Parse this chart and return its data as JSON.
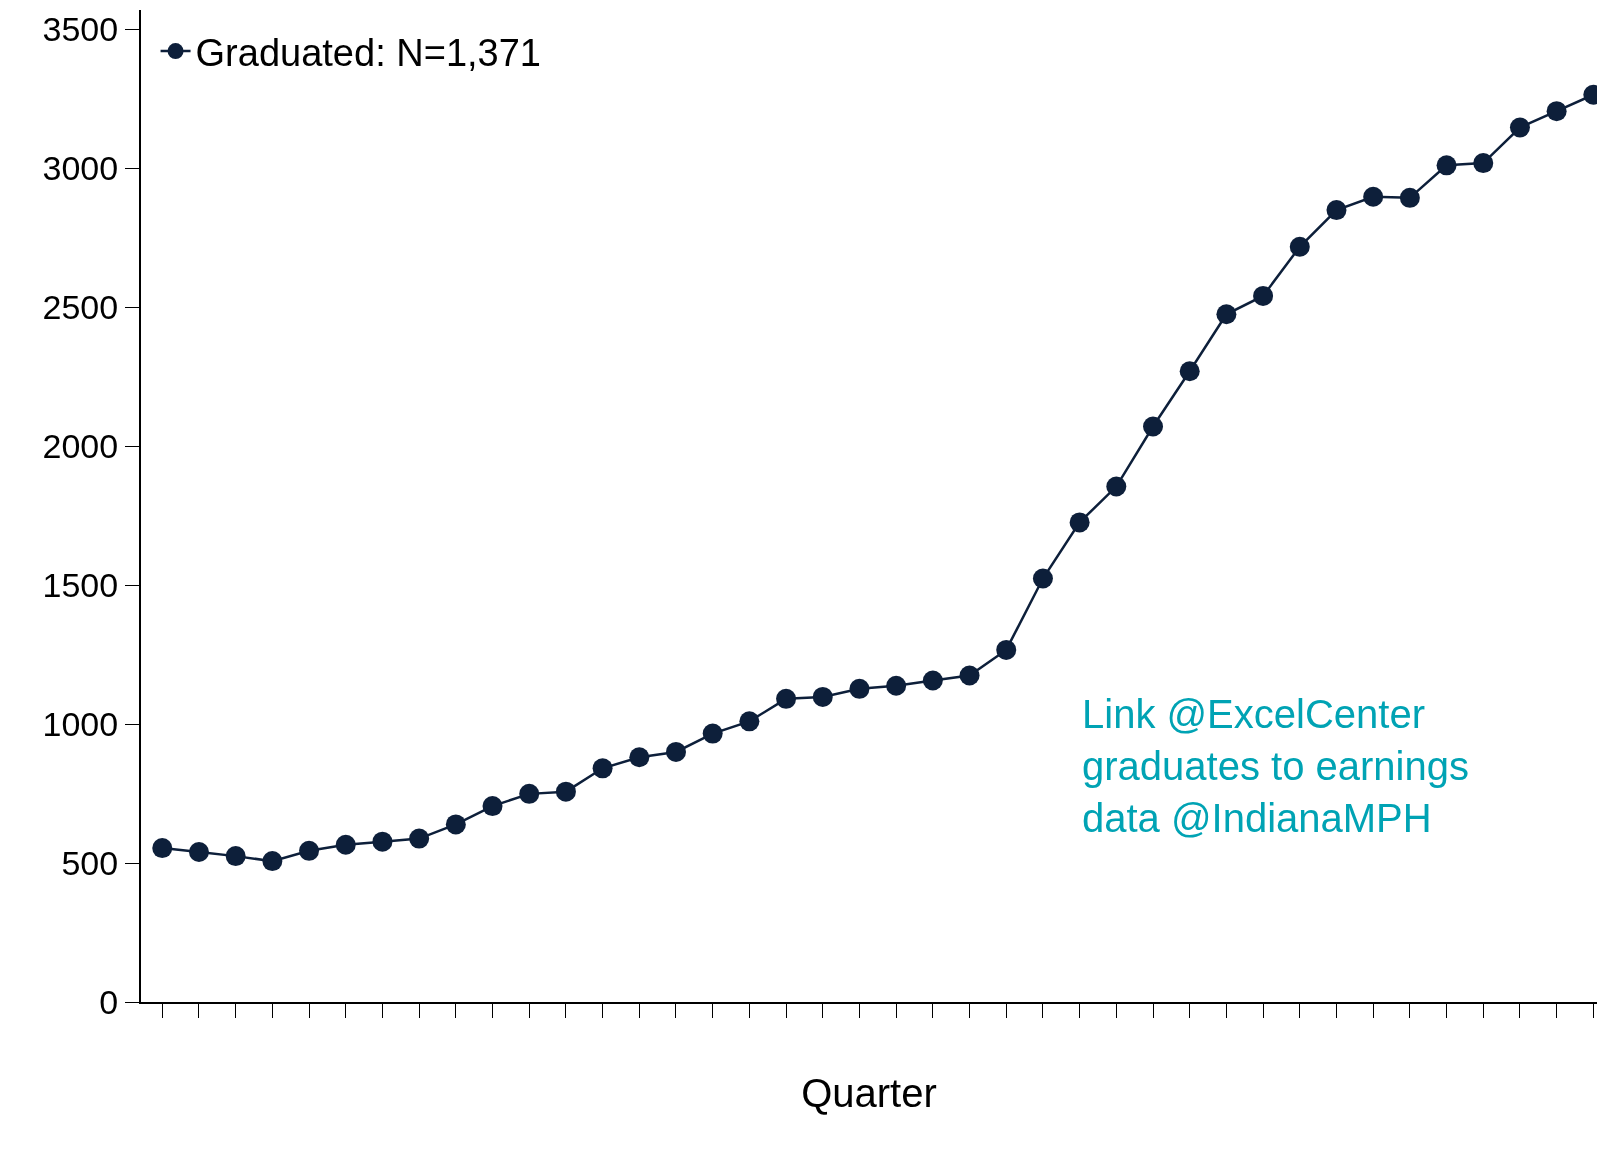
{
  "chart_data": {
    "type": "line",
    "xlabel": "Quarter",
    "categories": [
      null,
      null,
      null,
      null,
      null,
      null,
      null,
      null,
      null,
      null,
      null,
      null,
      null,
      null,
      null,
      null,
      null,
      null,
      null,
      null,
      null,
      null,
      null,
      null,
      null,
      null,
      null,
      null,
      null,
      null,
      null,
      null,
      null,
      null,
      null,
      null,
      null,
      null,
      null,
      null
    ],
    "series": [
      {
        "name": "Graduated: N=1,371",
        "color": "#0d1f3a",
        "values": [
          554,
          540,
          525,
          507,
          544,
          566,
          577,
          588,
          639,
          705,
          749,
          757,
          841,
          881,
          900,
          966,
          1010,
          1091,
          1098,
          1127,
          1138,
          1157,
          1175,
          1267,
          1524,
          1726,
          1855,
          2071,
          2270,
          2475,
          2541,
          2718,
          2850,
          2898,
          2894,
          3011,
          3019,
          3147,
          3206,
          3265
        ]
      }
    ],
    "ylim": [
      0,
      3570
    ],
    "yticks": [
      0,
      500,
      1000,
      1500,
      2000,
      2500,
      3000,
      3500
    ],
    "legend": "top left",
    "marker": "circle",
    "line_style": "solid",
    "annotations": [
      "Link @ExcelCenter\ngraduates to earnings\ndata @IndianaMPH"
    ]
  }
}
